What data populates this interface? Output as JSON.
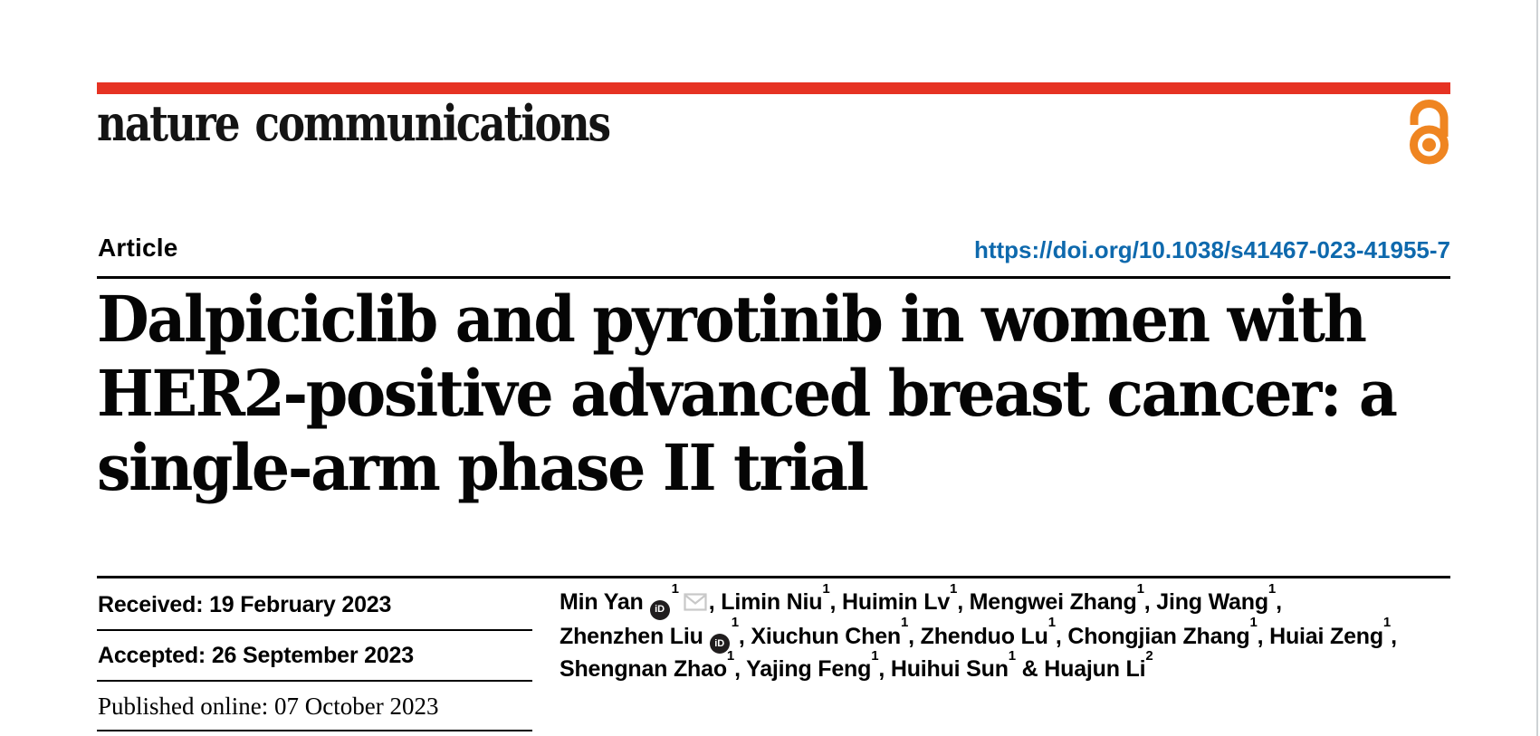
{
  "journal": {
    "logo_text": "nature communications"
  },
  "masthead": {
    "open_access_icon": "open-lock"
  },
  "article": {
    "kicker": "Article",
    "doi_url": "https://doi.org/10.1038/s41467-023-41955-7",
    "title_lines": [
      "Dalpiciclib and pyrotinib in women with",
      "HER2-positive advanced breast cancer: a",
      "single-arm phase II trial"
    ]
  },
  "dates": {
    "received": {
      "label": "Received:",
      "value": "19 February 2023"
    },
    "accepted": {
      "label": "Accepted:",
      "value": "26 September 2023"
    },
    "published": {
      "label": "Published online:",
      "value": "07 October 2023"
    }
  },
  "authors": {
    "lines": [
      [
        {
          "t": "Min Yan"
        },
        {
          "icon": "orcid"
        },
        {
          "sup": "1"
        },
        {
          "icon": "email"
        },
        {
          "t": ", Limin Niu"
        },
        {
          "sup": "1"
        },
        {
          "t": ", Huimin Lv"
        },
        {
          "sup": "1"
        },
        {
          "t": ", Mengwei Zhang"
        },
        {
          "sup": "1"
        },
        {
          "t": ", Jing Wang"
        },
        {
          "sup": "1"
        },
        {
          "t": ","
        }
      ],
      [
        {
          "t": "Zhenzhen Liu"
        },
        {
          "icon": "orcid"
        },
        {
          "sup": "1"
        },
        {
          "t": ", Xiuchun Chen"
        },
        {
          "sup": "1"
        },
        {
          "t": ", Zhenduo Lu"
        },
        {
          "sup": "1"
        },
        {
          "t": ", Chongjian Zhang"
        },
        {
          "sup": "1"
        },
        {
          "t": ", Huiai Zeng"
        },
        {
          "sup": "1"
        },
        {
          "t": ","
        }
      ],
      [
        {
          "t": "Shengnan Zhao"
        },
        {
          "sup": "1"
        },
        {
          "t": ", Yajing Feng"
        },
        {
          "sup": "1"
        },
        {
          "t": ", Huihui Sun"
        },
        {
          "sup": "1"
        },
        {
          "t": " & Huajun Li"
        },
        {
          "sup": "2"
        }
      ]
    ]
  },
  "icons": {
    "open_access": "open-lock",
    "orcid": "iD-badge",
    "email": "envelope"
  },
  "colors": {
    "accent_red": "#e63323",
    "doi_blue": "#0e69ad",
    "oa_orange": "#ef8521",
    "rule": "#000000",
    "envelope_gray": "#c8c8c8",
    "page_edge": "#cfd2d5",
    "logo_ink": "#141414"
  }
}
